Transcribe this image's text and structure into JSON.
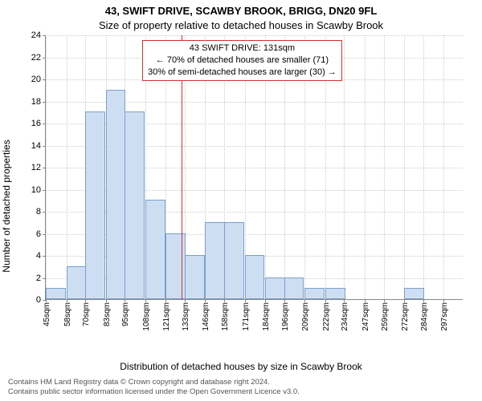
{
  "title_main": "43, SWIFT DRIVE, SCAWBY BROOK, BRIGG, DN20 9FL",
  "title_sub": "Size of property relative to detached houses in Scawby Brook",
  "ylabel": "Number of detached properties",
  "xlabel": "Distribution of detached houses by size in Scawby Brook",
  "histogram": {
    "type": "histogram",
    "bar_color": "#cedef2",
    "bar_border": "#7a9fc9",
    "background_color": "#ffffff",
    "grid_color": "#cccccc",
    "axis_color": "#888888",
    "ylim": [
      0,
      24
    ],
    "ytick_step": 2,
    "bin_width_sqm": 12.6,
    "xticks": [
      45,
      58,
      70,
      83,
      95,
      108,
      121,
      133,
      146,
      158,
      171,
      184,
      196,
      209,
      222,
      234,
      247,
      259,
      272,
      284,
      297
    ],
    "xtick_suffix": "sqm",
    "values": [
      1,
      3,
      17,
      19,
      17,
      9,
      6,
      4,
      7,
      7,
      4,
      2,
      2,
      1,
      1,
      0,
      0,
      0,
      1,
      0,
      0
    ],
    "marker": {
      "position_sqm": 131,
      "color": "#cc3333"
    },
    "annotation": {
      "lines": [
        "43 SWIFT DRIVE: 131sqm",
        "← 70% of detached houses are smaller (71)",
        "30% of semi-detached houses are larger (30) →"
      ],
      "border_color": "#cc3333",
      "text_color": "#000000"
    }
  },
  "footer1": "Contains HM Land Registry data © Crown copyright and database right 2024.",
  "footer2": "Contains public sector information licensed under the Open Government Licence v3.0."
}
